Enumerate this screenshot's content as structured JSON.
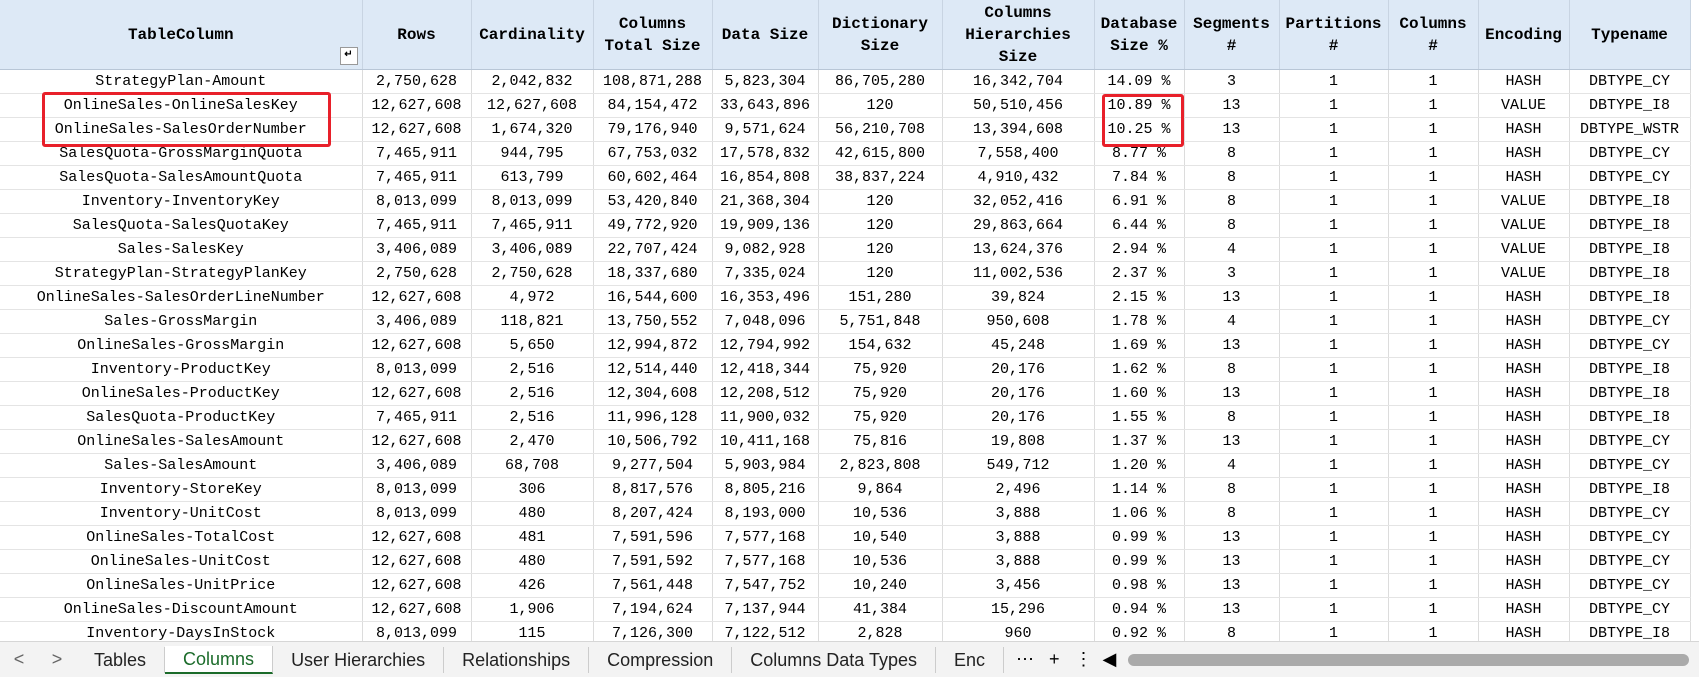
{
  "table": {
    "header": [
      "TableColumn",
      "Rows",
      "Cardinality",
      "Columns Total Size",
      "Data Size",
      "Dictionary Size",
      "Columns Hierarchies Size",
      "Database Size %",
      "Segments #",
      "Partitions #",
      "Columns #",
      "Encoding",
      "Typename"
    ],
    "rows": [
      [
        "StrategyPlan-Amount",
        "2,750,628",
        "2,042,832",
        "108,871,288",
        "5,823,304",
        "86,705,280",
        "16,342,704",
        "14.09 %",
        "3",
        "1",
        "1",
        "HASH",
        "DBTYPE_CY"
      ],
      [
        "OnlineSales-OnlineSalesKey",
        "12,627,608",
        "12,627,608",
        "84,154,472",
        "33,643,896",
        "120",
        "50,510,456",
        "10.89 %",
        "13",
        "1",
        "1",
        "VALUE",
        "DBTYPE_I8"
      ],
      [
        "OnlineSales-SalesOrderNumber",
        "12,627,608",
        "1,674,320",
        "79,176,940",
        "9,571,624",
        "56,210,708",
        "13,394,608",
        "10.25 %",
        "13",
        "1",
        "1",
        "HASH",
        "DBTYPE_WSTR"
      ],
      [
        "SalesQuota-GrossMarginQuota",
        "7,465,911",
        "944,795",
        "67,753,032",
        "17,578,832",
        "42,615,800",
        "7,558,400",
        "8.77 %",
        "8",
        "1",
        "1",
        "HASH",
        "DBTYPE_CY"
      ],
      [
        "SalesQuota-SalesAmountQuota",
        "7,465,911",
        "613,799",
        "60,602,464",
        "16,854,808",
        "38,837,224",
        "4,910,432",
        "7.84 %",
        "8",
        "1",
        "1",
        "HASH",
        "DBTYPE_CY"
      ],
      [
        "Inventory-InventoryKey",
        "8,013,099",
        "8,013,099",
        "53,420,840",
        "21,368,304",
        "120",
        "32,052,416",
        "6.91 %",
        "8",
        "1",
        "1",
        "VALUE",
        "DBTYPE_I8"
      ],
      [
        "SalesQuota-SalesQuotaKey",
        "7,465,911",
        "7,465,911",
        "49,772,920",
        "19,909,136",
        "120",
        "29,863,664",
        "6.44 %",
        "8",
        "1",
        "1",
        "VALUE",
        "DBTYPE_I8"
      ],
      [
        "Sales-SalesKey",
        "3,406,089",
        "3,406,089",
        "22,707,424",
        "9,082,928",
        "120",
        "13,624,376",
        "2.94 %",
        "4",
        "1",
        "1",
        "VALUE",
        "DBTYPE_I8"
      ],
      [
        "StrategyPlan-StrategyPlanKey",
        "2,750,628",
        "2,750,628",
        "18,337,680",
        "7,335,024",
        "120",
        "11,002,536",
        "2.37 %",
        "3",
        "1",
        "1",
        "VALUE",
        "DBTYPE_I8"
      ],
      [
        "OnlineSales-SalesOrderLineNumber",
        "12,627,608",
        "4,972",
        "16,544,600",
        "16,353,496",
        "151,280",
        "39,824",
        "2.15 %",
        "13",
        "1",
        "1",
        "HASH",
        "DBTYPE_I8"
      ],
      [
        "Sales-GrossMargin",
        "3,406,089",
        "118,821",
        "13,750,552",
        "7,048,096",
        "5,751,848",
        "950,608",
        "1.78 %",
        "4",
        "1",
        "1",
        "HASH",
        "DBTYPE_CY"
      ],
      [
        "OnlineSales-GrossMargin",
        "12,627,608",
        "5,650",
        "12,994,872",
        "12,794,992",
        "154,632",
        "45,248",
        "1.69 %",
        "13",
        "1",
        "1",
        "HASH",
        "DBTYPE_CY"
      ],
      [
        "Inventory-ProductKey",
        "8,013,099",
        "2,516",
        "12,514,440",
        "12,418,344",
        "75,920",
        "20,176",
        "1.62 %",
        "8",
        "1",
        "1",
        "HASH",
        "DBTYPE_I8"
      ],
      [
        "OnlineSales-ProductKey",
        "12,627,608",
        "2,516",
        "12,304,608",
        "12,208,512",
        "75,920",
        "20,176",
        "1.60 %",
        "13",
        "1",
        "1",
        "HASH",
        "DBTYPE_I8"
      ],
      [
        "SalesQuota-ProductKey",
        "7,465,911",
        "2,516",
        "11,996,128",
        "11,900,032",
        "75,920",
        "20,176",
        "1.55 %",
        "8",
        "1",
        "1",
        "HASH",
        "DBTYPE_I8"
      ],
      [
        "OnlineSales-SalesAmount",
        "12,627,608",
        "2,470",
        "10,506,792",
        "10,411,168",
        "75,816",
        "19,808",
        "1.37 %",
        "13",
        "1",
        "1",
        "HASH",
        "DBTYPE_CY"
      ],
      [
        "Sales-SalesAmount",
        "3,406,089",
        "68,708",
        "9,277,504",
        "5,903,984",
        "2,823,808",
        "549,712",
        "1.20 %",
        "4",
        "1",
        "1",
        "HASH",
        "DBTYPE_CY"
      ],
      [
        "Inventory-StoreKey",
        "8,013,099",
        "306",
        "8,817,576",
        "8,805,216",
        "9,864",
        "2,496",
        "1.14 %",
        "8",
        "1",
        "1",
        "HASH",
        "DBTYPE_I8"
      ],
      [
        "Inventory-UnitCost",
        "8,013,099",
        "480",
        "8,207,424",
        "8,193,000",
        "10,536",
        "3,888",
        "1.06 %",
        "8",
        "1",
        "1",
        "HASH",
        "DBTYPE_CY"
      ],
      [
        "OnlineSales-TotalCost",
        "12,627,608",
        "481",
        "7,591,596",
        "7,577,168",
        "10,540",
        "3,888",
        "0.99 %",
        "13",
        "1",
        "1",
        "HASH",
        "DBTYPE_CY"
      ],
      [
        "OnlineSales-UnitCost",
        "12,627,608",
        "480",
        "7,591,592",
        "7,577,168",
        "10,536",
        "3,888",
        "0.99 %",
        "13",
        "1",
        "1",
        "HASH",
        "DBTYPE_CY"
      ],
      [
        "OnlineSales-UnitPrice",
        "12,627,608",
        "426",
        "7,561,448",
        "7,547,752",
        "10,240",
        "3,456",
        "0.98 %",
        "13",
        "1",
        "1",
        "HASH",
        "DBTYPE_CY"
      ],
      [
        "OnlineSales-DiscountAmount",
        "12,627,608",
        "1,906",
        "7,194,624",
        "7,137,944",
        "41,384",
        "15,296",
        "0.94 %",
        "13",
        "1",
        "1",
        "HASH",
        "DBTYPE_CY"
      ],
      [
        "Inventory-DaysInStock",
        "8,013,099",
        "115",
        "7,126,300",
        "7,122,512",
        "2,828",
        "960",
        "0.92 %",
        "8",
        "1",
        "1",
        "HASH",
        "DBTYPE_I8"
      ]
    ]
  },
  "tabs": [
    "Tables",
    "Columns",
    "User Hierarchies",
    "Relationships",
    "Compression",
    "Columns Data Types",
    "Enc"
  ]
}
